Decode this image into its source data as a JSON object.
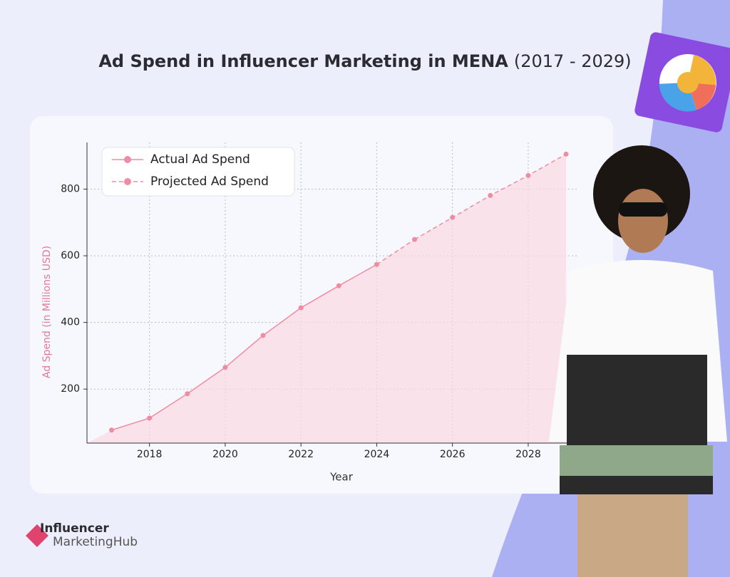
{
  "chart_data": {
    "type": "line",
    "title": "Ad Spend in Influencer Marketing in MENA",
    "subtitle": "(2017 - 2029)",
    "x_label": "Year",
    "y_label": "Ad Spend (in Millions USD)",
    "x": [
      2017,
      2018,
      2019,
      2020,
      2021,
      2022,
      2023,
      2024,
      2025,
      2026,
      2027,
      2028,
      2029
    ],
    "series": [
      {
        "name": "Actual Ad Spend",
        "color": "#f08ca2",
        "dashed": false,
        "values": [
          77,
          113,
          186,
          265,
          361,
          444,
          510,
          574,
          null,
          null,
          null,
          null,
          null
        ]
      },
      {
        "name": "Projected Ad Spend",
        "color": "#f08ca2",
        "dashed": true,
        "values": [
          null,
          null,
          null,
          null,
          null,
          null,
          null,
          null,
          649,
          715,
          781,
          841,
          905
        ]
      }
    ],
    "xlim": [
      2016.35,
      2029.3
    ],
    "xticks": [
      2018,
      2020,
      2022,
      2024,
      2026,
      2028
    ],
    "ylim": [
      38,
      940
    ],
    "yticks": [
      200,
      400,
      600,
      800
    ],
    "grid": true,
    "legend": "upper left",
    "area_color": "#fbd9e1"
  },
  "logo": {
    "line1": "Influencer",
    "line2": "MarketingHub"
  }
}
